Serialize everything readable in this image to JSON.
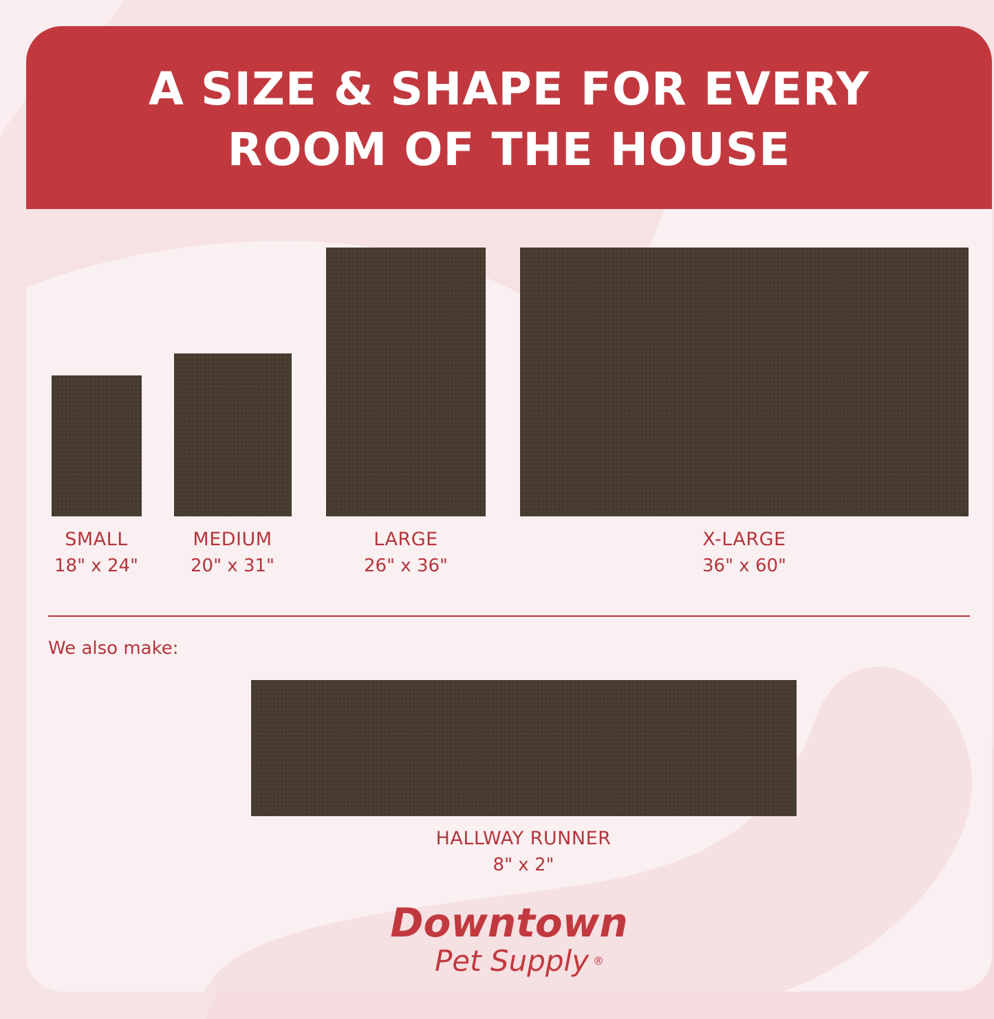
{
  "header": {
    "title_line1": "A SIZE & SHAPE FOR EVERY",
    "title_line2": "ROOM OF THE HOUSE"
  },
  "sizes": [
    {
      "name": "SMALL",
      "dims": "18\" x 24\""
    },
    {
      "name": "MEDIUM",
      "dims": "20\" x 31\""
    },
    {
      "name": "LARGE",
      "dims": "26\" x 36\""
    },
    {
      "name": "X-LARGE",
      "dims": "36\" x 60\""
    }
  ],
  "also": {
    "label": "We also make:",
    "name": "HALLWAY RUNNER",
    "dims": "8\" x 2\""
  },
  "logo": {
    "line1": "Downtown",
    "line2": "Pet Supply",
    "mark": "®"
  },
  "colors": {
    "brand_red": "#c1393f",
    "mat": "#4a3d31",
    "background": "#fbf0f1"
  }
}
